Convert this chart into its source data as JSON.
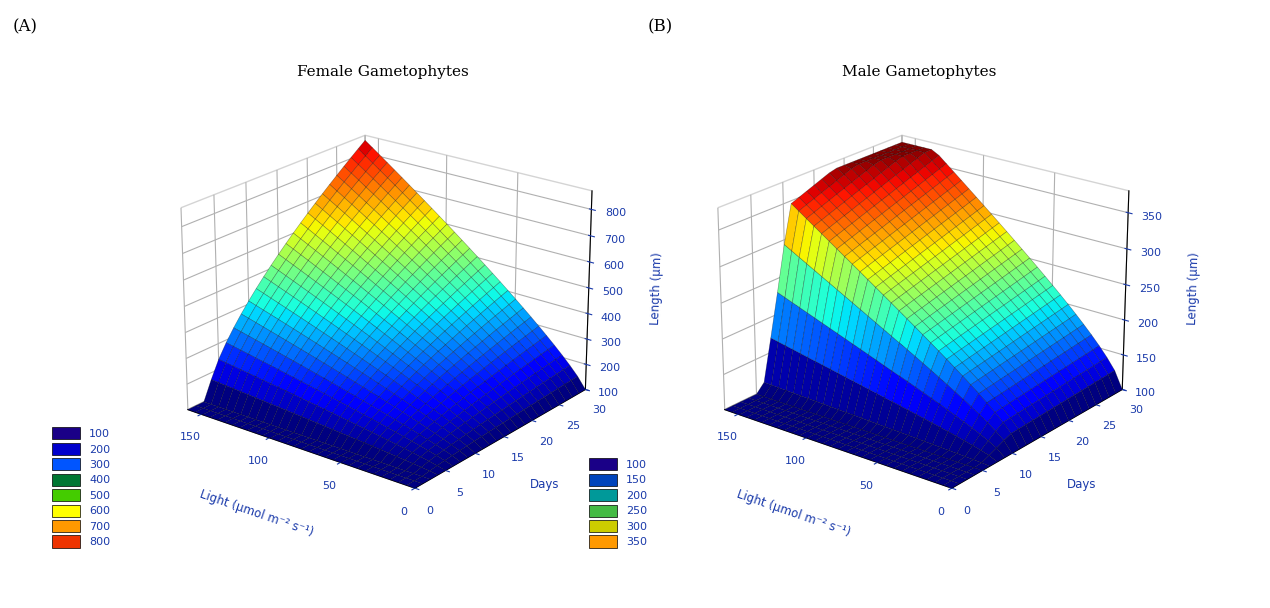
{
  "title_A": "Female Gametophytes",
  "title_B": "Male Gametophytes",
  "xlabel": "Light (μmol m⁻² s⁻¹)",
  "ylabel": "Days",
  "zlabel_A": "Length (μm)",
  "zlabel_B": "Length (μm)",
  "zlim_A": [
    100,
    870
  ],
  "zlim_B": [
    100,
    380
  ],
  "zticks_A": [
    100,
    200,
    300,
    400,
    500,
    600,
    700,
    800
  ],
  "zticks_B": [
    100,
    150,
    200,
    250,
    300,
    350
  ],
  "legend_A_labels": [
    "100",
    "200",
    "300",
    "400",
    "500",
    "600",
    "700",
    "800"
  ],
  "legend_A_colors": [
    "#1a0087",
    "#0000cc",
    "#0055ff",
    "#007733",
    "#44cc00",
    "#ffff00",
    "#ff9900",
    "#ee3300"
  ],
  "legend_B_labels": [
    "100",
    "150",
    "200",
    "250",
    "300",
    "350"
  ],
  "legend_B_colors": [
    "#1a0087",
    "#0044bb",
    "#009999",
    "#44bb44",
    "#cccc00",
    "#ff9900"
  ],
  "panel_label_A": "(A)",
  "panel_label_B": "(B)",
  "surface_cmap": "jet",
  "elev": 22,
  "azim": -52,
  "figsize": [
    12.7,
    6.08
  ],
  "dpi": 100
}
